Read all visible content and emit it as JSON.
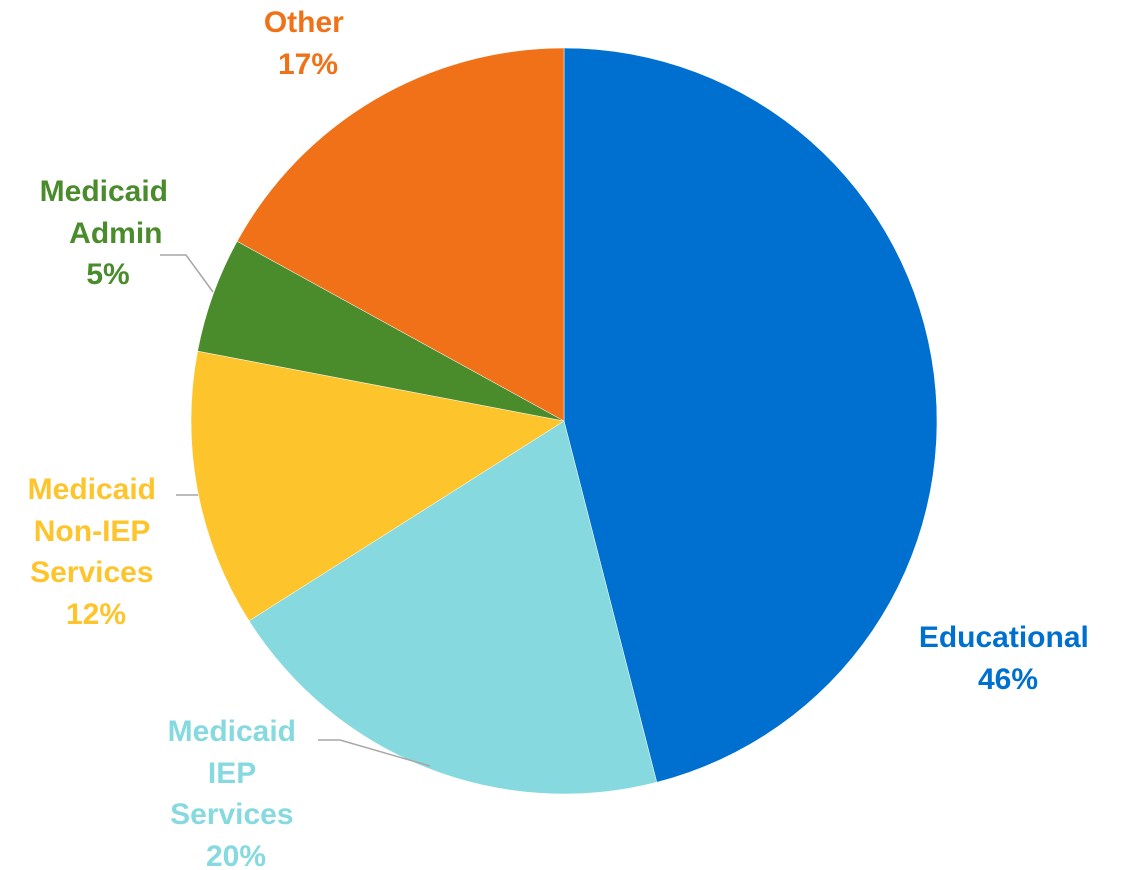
{
  "chart_data": {
    "type": "pie",
    "title": "",
    "start_angle_deg": 0,
    "direction": "clockwise",
    "slices": [
      {
        "label": "Educational",
        "value": 46,
        "value_label": "46%",
        "color": "#0070d0"
      },
      {
        "label": "Medicaid IEP Services",
        "value": 20,
        "value_label": "20%",
        "color": "#86dadf"
      },
      {
        "label": "Medicaid Non-IEP Services",
        "value": 12,
        "value_label": "12%",
        "color": "#fec42b"
      },
      {
        "label": "Medicaid Admin",
        "value": 5,
        "value_label": "5%",
        "color": "#4a8b2c"
      },
      {
        "label": "Other",
        "value": 17,
        "value_label": "17%",
        "color": "#f07117"
      }
    ],
    "legend": "none",
    "data_labels": "outside with leader lines"
  },
  "labels": {
    "educational": {
      "lines": [
        "Educational",
        "46%"
      ]
    },
    "iep": {
      "lines": [
        "Medicaid",
        "IEP",
        "Services",
        "20%"
      ]
    },
    "noniep": {
      "lines": [
        "Medicaid",
        "Non-IEP",
        "Services",
        "12%"
      ]
    },
    "admin": {
      "lines": [
        "Medicaid",
        "Admin",
        "5%"
      ]
    },
    "other": {
      "lines": [
        "Other",
        "17%"
      ]
    }
  }
}
